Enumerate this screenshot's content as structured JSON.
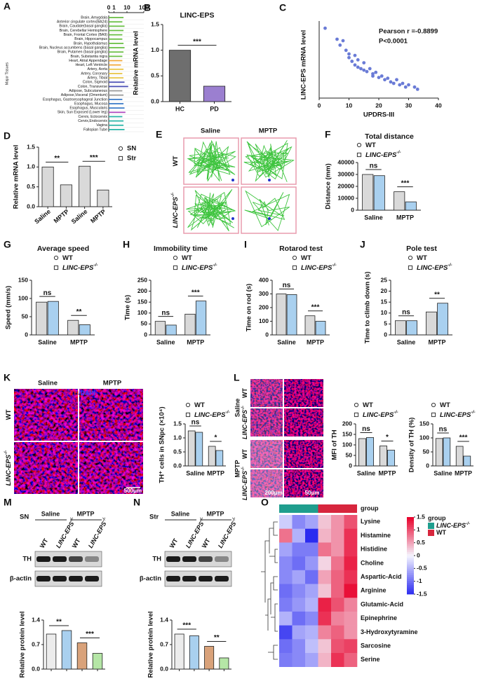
{
  "chart_data": [
    {
      "type": "hbar",
      "label": "A",
      "ylabel": "Major Tissues",
      "categories": [
        "Brain, Amygdala",
        "Anterior cingulate cortex(BA24)",
        "Brain, Caudate(basal ganglia)",
        "Brain, Cerebellar Hemisphere",
        "Brain, Frontal Cortex (BA9)",
        "Brain, Hippocampus",
        "Brain, Hypothalamus",
        "Brain, Nucleus accumbens (basal ganglia)",
        "Brain, Putamen (basal ganglia)",
        "Brain, Substantia nigra",
        "Heart, Atrial Appendage",
        "Heart, Left Ventricle",
        "Artery, Aorta",
        "Artery, Coronary",
        "Artery, Tibial",
        "Colon, Sigmoid",
        "Colon, Transverse",
        "Adipose, Subcutaneous",
        "Adipose,Visceral (Omentum)",
        "Esophagus, Gastroesophageal Junction",
        "Esophagus, Mucosa",
        "Esophagus, Muscularis",
        "Skin, Sun Exposed (Lower leg)",
        "Cervix, Ectocervix",
        "Cervix,Endocervix",
        "Vagina",
        "Fallopian Tube"
      ],
      "values": [
        6,
        5,
        7,
        6,
        5,
        5,
        6,
        7,
        6,
        5,
        5,
        4,
        6,
        5,
        6,
        7,
        12,
        5,
        6,
        5,
        6,
        7,
        8,
        5,
        6,
        6,
        7
      ],
      "colors": [
        "#6abf45",
        "#6abf45",
        "#6abf45",
        "#6abf45",
        "#6abf45",
        "#6abf45",
        "#6abf45",
        "#6abf45",
        "#6abf45",
        "#6abf45",
        "#f2a93b",
        "#f2a93b",
        "#e8c547",
        "#e8c547",
        "#e8c547",
        "#4a4fb5",
        "#4a4fb5",
        "#9a9a9a",
        "#9a9a9a",
        "#3d7cc9",
        "#3d7cc9",
        "#3d7cc9",
        "#b04ac0",
        "#2cb5a8",
        "#2cb5a8",
        "#2cb5a8",
        "#2cb5a8"
      ],
      "xlim": [
        0,
        100
      ],
      "xticks": [
        0,
        1,
        10,
        100
      ],
      "xscale": "symlog"
    },
    {
      "type": "bar",
      "label": "B",
      "title": "LINC-EPS",
      "ylabel": "Relative mRNA level",
      "categories": [
        "HC",
        "PD"
      ],
      "values": [
        1.0,
        0.3
      ],
      "colors": [
        "#6e6e6e",
        "#9b7fd0"
      ],
      "ylim": [
        0,
        1.5
      ],
      "yticks": [
        {
          "value": 0,
          "label": "0.0"
        },
        {
          "value": 0.5,
          "label": "0.5"
        },
        {
          "value": 1,
          "label": "1.0"
        },
        {
          "value": 1.5,
          "label": "1.5"
        }
      ],
      "significance": [
        "***"
      ]
    },
    {
      "type": "scatter",
      "label": "C",
      "xlabel": "UPDRS-III",
      "ylabel": "LINC-EPS mRNA level",
      "color": "#6a7bd6",
      "annotations": [
        "Pearson r =-0.8899",
        "P<0.0001"
      ],
      "x": [
        2,
        6,
        7,
        8,
        9,
        10,
        10,
        11,
        12,
        12,
        13,
        13,
        14,
        15,
        15,
        16,
        17,
        18,
        18,
        19,
        20,
        21,
        22,
        23,
        24,
        25,
        26,
        27,
        28,
        29,
        30,
        32,
        33
      ],
      "y": [
        0.95,
        0.8,
        0.72,
        0.78,
        0.65,
        0.6,
        0.55,
        0.5,
        0.58,
        0.45,
        0.52,
        0.42,
        0.4,
        0.48,
        0.38,
        0.36,
        0.4,
        0.33,
        0.3,
        0.35,
        0.28,
        0.3,
        0.25,
        0.27,
        0.22,
        0.2,
        0.25,
        0.18,
        0.2,
        0.15,
        0.18,
        0.15,
        0.12
      ],
      "xlim": [
        0,
        40
      ],
      "xticks": [
        0,
        10,
        20,
        30,
        40
      ],
      "ylim": [
        0,
        1
      ]
    },
    {
      "type": "bar",
      "label": "D",
      "ylabel": "Relative mRNA level",
      "categories": [
        "Saline",
        "MPTP",
        "Saline",
        "MPTP"
      ],
      "values": [
        1.0,
        0.55,
        1.02,
        0.42
      ],
      "colors": [
        "#d9d9d9",
        "#d9d9d9",
        "#d9d9d9",
        "#d9d9d9"
      ],
      "legend": [
        {
          "name": "SN",
          "marker": "circle"
        },
        {
          "name": "Str",
          "marker": "square"
        }
      ],
      "ylim": [
        0,
        1.5
      ],
      "yticks": [
        {
          "value": 0,
          "label": "0.0"
        },
        {
          "value": 0.5,
          "label": "0.5"
        },
        {
          "value": 1,
          "label": "1.0"
        },
        {
          "value": 1.5,
          "label": "1.5"
        }
      ],
      "significance": [
        "**",
        "***"
      ]
    },
    {
      "type": "bar",
      "label": "F",
      "title": "Total distance",
      "ylabel": "Distance (mm)",
      "categories": [
        "Saline",
        "MPTP"
      ],
      "series": [
        {
          "name": "WT",
          "marker": "circle",
          "color": "#d9d9d9",
          "values": [
            30000,
            15500
          ]
        },
        {
          "name": "LINC-EPS",
          "sup": "-/-",
          "marker": "square",
          "color": "#a9d0ef",
          "values": [
            29000,
            7000
          ]
        }
      ],
      "ylim": [
        0,
        40000
      ],
      "yticks": [
        0,
        10000,
        20000,
        30000,
        40000
      ],
      "significance": [
        "ns",
        "***"
      ]
    },
    {
      "type": "bar",
      "label": "G",
      "title": "Average speed",
      "ylabel": "Speed (mm/s)",
      "categories": [
        "Saline",
        "MPTP"
      ],
      "series": [
        {
          "name": "WT",
          "marker": "circle",
          "color": "#d9d9d9",
          "values": [
            90,
            40
          ]
        },
        {
          "name": "LINC-EPS",
          "sup": "-/-",
          "marker": "square",
          "color": "#a9d0ef",
          "values": [
            92,
            28
          ]
        }
      ],
      "ylim": [
        0,
        150
      ],
      "yticks": [
        0,
        50,
        100,
        150
      ],
      "significance": [
        "ns",
        "**"
      ]
    },
    {
      "type": "bar",
      "label": "H",
      "title": "Immobility time",
      "ylabel": "Time (s)",
      "categories": [
        "Saline",
        "MPTP"
      ],
      "series": [
        {
          "name": "WT",
          "marker": "circle",
          "color": "#d9d9d9",
          "values": [
            62,
            95
          ]
        },
        {
          "name": "LINC-EPS",
          "sup": "-/-",
          "marker": "square",
          "color": "#a9d0ef",
          "values": [
            45,
            155
          ]
        }
      ],
      "ylim": [
        0,
        250
      ],
      "yticks": [
        0,
        50,
        100,
        150,
        200,
        250
      ],
      "significance": [
        "ns",
        "***"
      ]
    },
    {
      "type": "bar",
      "label": "I",
      "title": "Rotarod test",
      "ylabel": "Time on rod (s)",
      "categories": [
        "Saline",
        "MPTP"
      ],
      "series": [
        {
          "name": "WT",
          "marker": "circle",
          "color": "#d9d9d9",
          "values": [
            300,
            140
          ]
        },
        {
          "name": "LINC-EPS",
          "sup": "-/-",
          "marker": "square",
          "color": "#a9d0ef",
          "values": [
            295,
            100
          ]
        }
      ],
      "ylim": [
        0,
        400
      ],
      "yticks": [
        0,
        100,
        200,
        300,
        400
      ],
      "significance": [
        "ns",
        "***"
      ]
    },
    {
      "type": "bar",
      "label": "J",
      "title": "Pole test",
      "ylabel": "Time to climb down (s)",
      "categories": [
        "Saline",
        "MPTP"
      ],
      "series": [
        {
          "name": "WT",
          "marker": "circle",
          "color": "#d9d9d9",
          "values": [
            6.5,
            10.5
          ]
        },
        {
          "name": "LINC-EPS",
          "sup": "-/-",
          "marker": "square",
          "color": "#a9d0ef",
          "values": [
            6.5,
            14.5
          ]
        }
      ],
      "ylim": [
        0,
        25
      ],
      "yticks": [
        0,
        5,
        10,
        15,
        20,
        25
      ],
      "significance": [
        "ns",
        "**"
      ]
    },
    {
      "type": "bar",
      "ylabel": "TH⁺ cells in SNpc (×10⁴)",
      "categories": [
        "Saline",
        "MPTP"
      ],
      "series": [
        {
          "name": "WT",
          "marker": "circle",
          "color": "#d9d9d9",
          "values": [
            1.25,
            0.7
          ]
        },
        {
          "name": "LINC-EPS",
          "sup": "-/-",
          "marker": "square",
          "color": "#a9d0ef",
          "values": [
            1.2,
            0.55
          ]
        }
      ],
      "ylim": [
        0,
        1.5
      ],
      "yticks": [
        {
          "value": 0,
          "label": "0.0"
        },
        {
          "value": 0.5,
          "label": "0.5"
        },
        {
          "value": 1,
          "label": "1.0"
        },
        {
          "value": 1.5,
          "label": "1.5"
        }
      ],
      "significance": [
        "ns",
        "*"
      ]
    },
    {
      "type": "bar",
      "ylabel": "MFI of TH",
      "categories": [
        "Saline",
        "MPTP"
      ],
      "series": [
        {
          "name": "WT",
          "marker": "circle",
          "color": "#d9d9d9",
          "values": [
            130,
            95
          ]
        },
        {
          "name": "LINC-EPS",
          "sup": "-/-",
          "marker": "square",
          "color": "#a9d0ef",
          "values": [
            135,
            75
          ]
        }
      ],
      "ylim": [
        0,
        200
      ],
      "yticks": [
        0,
        50,
        100,
        150,
        200
      ],
      "significance": [
        "ns",
        "*"
      ]
    },
    {
      "type": "bar",
      "ylabel": "Density of TH (%)",
      "categories": [
        "Saline",
        "MPTP"
      ],
      "series": [
        {
          "name": "WT",
          "marker": "circle",
          "color": "#d9d9d9",
          "values": [
            98,
            70
          ]
        },
        {
          "name": "LINC-EPS",
          "sup": "-/-",
          "marker": "square",
          "color": "#a9d0ef",
          "values": [
            100,
            35
          ]
        }
      ],
      "ylim": [
        0,
        150
      ],
      "yticks": [
        0,
        50,
        100,
        150
      ],
      "significance": [
        "ns",
        "***"
      ]
    },
    {
      "type": "bar",
      "ylabel": "Relative protein level",
      "values": [
        1.0,
        1.1,
        0.75,
        0.45
      ],
      "colors": [
        "#ececec",
        "#a9d0ef",
        "#d9a27a",
        "#b5e6a6"
      ],
      "ylim": [
        0,
        1.4
      ],
      "yticks": [
        {
          "value": 0,
          "label": "0.0"
        },
        {
          "value": 0.7,
          "label": "0.7"
        },
        {
          "value": 1.4,
          "label": "1.4"
        }
      ],
      "significance": [
        "**",
        "***"
      ]
    },
    {
      "type": "bar",
      "ylabel": "Relative protein level",
      "values": [
        1.0,
        0.95,
        0.65,
        0.32
      ],
      "colors": [
        "#ececec",
        "#a9d0ef",
        "#d9a27a",
        "#b5e6a6"
      ],
      "ylim": [
        0,
        1.4
      ],
      "yticks": [
        {
          "value": 0,
          "label": "0.0"
        },
        {
          "value": 0.7,
          "label": "0.7"
        },
        {
          "value": 1.4,
          "label": "1.4"
        }
      ],
      "significance": [
        "***",
        "**"
      ]
    },
    {
      "type": "heatmap",
      "label": "O",
      "group_label": "group",
      "group_title": "group",
      "groups": [
        {
          "name": "LINC-EPS",
          "sup": "-/-",
          "color": "#1f9e8e",
          "columns": 3
        },
        {
          "name": "WT",
          "color": "#d7263d",
          "columns": 3
        }
      ],
      "rows": [
        "Lysine",
        "Histamine",
        "Histidine",
        "Choline",
        "Aspartic-Acid",
        "Arginine",
        "Glutamic-Acid",
        "Epinephrine",
        "3-Hydroxytyramine",
        "Sarcosine",
        "Serine"
      ],
      "values": [
        [
          -0.3,
          -0.8,
          -0.6,
          0.3,
          0.6,
          1.0
        ],
        [
          0.8,
          -0.5,
          -1.5,
          0.4,
          0.6,
          1.2
        ],
        [
          -0.6,
          -0.9,
          -0.9,
          0.8,
          0.6,
          1.2
        ],
        [
          -0.8,
          -1.0,
          -0.7,
          0.2,
          0.8,
          1.3
        ],
        [
          -0.8,
          -0.6,
          -1.0,
          0.5,
          0.9,
          1.2
        ],
        [
          -1.0,
          -0.8,
          -0.6,
          0.3,
          0.9,
          1.4
        ],
        [
          -0.9,
          -0.7,
          -0.5,
          1.3,
          1.0,
          0.7
        ],
        [
          -0.5,
          -1.0,
          -0.8,
          1.2,
          0.7,
          0.6
        ],
        [
          -1.3,
          -0.6,
          -0.5,
          0.7,
          0.9,
          0.6
        ],
        [
          -1.0,
          -0.8,
          -0.4,
          0.3,
          1.0,
          1.1
        ],
        [
          -0.9,
          -0.8,
          -0.6,
          0.4,
          1.2,
          0.9
        ]
      ],
      "zlim": [
        -1.5,
        1.5
      ],
      "zticks": [
        1.5,
        1,
        0.5,
        0,
        -0.5,
        -1,
        -1.5
      ],
      "colors": [
        "#2b2bf0",
        "#f5f5ff",
        "#e8002a"
      ]
    }
  ],
  "panels": {
    "E": {
      "label": "E",
      "columns": [
        "Saline",
        "MPTP"
      ],
      "rows": [
        {
          "name": "WT"
        },
        {
          "name": "LINC-EPS",
          "sup": "-/-"
        }
      ]
    },
    "K": {
      "label": "K",
      "stain": [
        "TH",
        "/DAPI"
      ],
      "columns": [
        "Saline",
        "MPTP"
      ],
      "rows": [
        {
          "name": "WT"
        },
        {
          "name": "LINC-EPS",
          "sup": "-/-"
        }
      ],
      "scale_bar": "500μm"
    },
    "L": {
      "label": "L",
      "groups": [
        "Saline",
        "MPTP"
      ],
      "rows": [
        {
          "name": "WT"
        },
        {
          "name": "LINC-EPS",
          "sup": "-/-"
        }
      ],
      "scale_bars": [
        "200μm",
        "50μm"
      ]
    },
    "M": {
      "label": "M",
      "region": "SN",
      "treatments": [
        "Saline",
        "MPTP"
      ],
      "lanes": [
        {
          "name": "WT"
        },
        {
          "name": "LINC-EPS",
          "sup": "-/-"
        },
        {
          "name": "WT"
        },
        {
          "name": "LINC-EPS",
          "sup": "-/-"
        }
      ],
      "bands": [
        "TH",
        "β-actin"
      ]
    },
    "N": {
      "label": "N",
      "region": "Str",
      "treatments": [
        "Saline",
        "MPTP"
      ],
      "lanes": [
        {
          "name": "WT"
        },
        {
          "name": "LINC-EPS",
          "sup": "-/-"
        },
        {
          "name": "WT"
        },
        {
          "name": "LINC-EPS",
          "sup": "-/-"
        }
      ],
      "bands": [
        "TH",
        "β-actin"
      ]
    }
  }
}
